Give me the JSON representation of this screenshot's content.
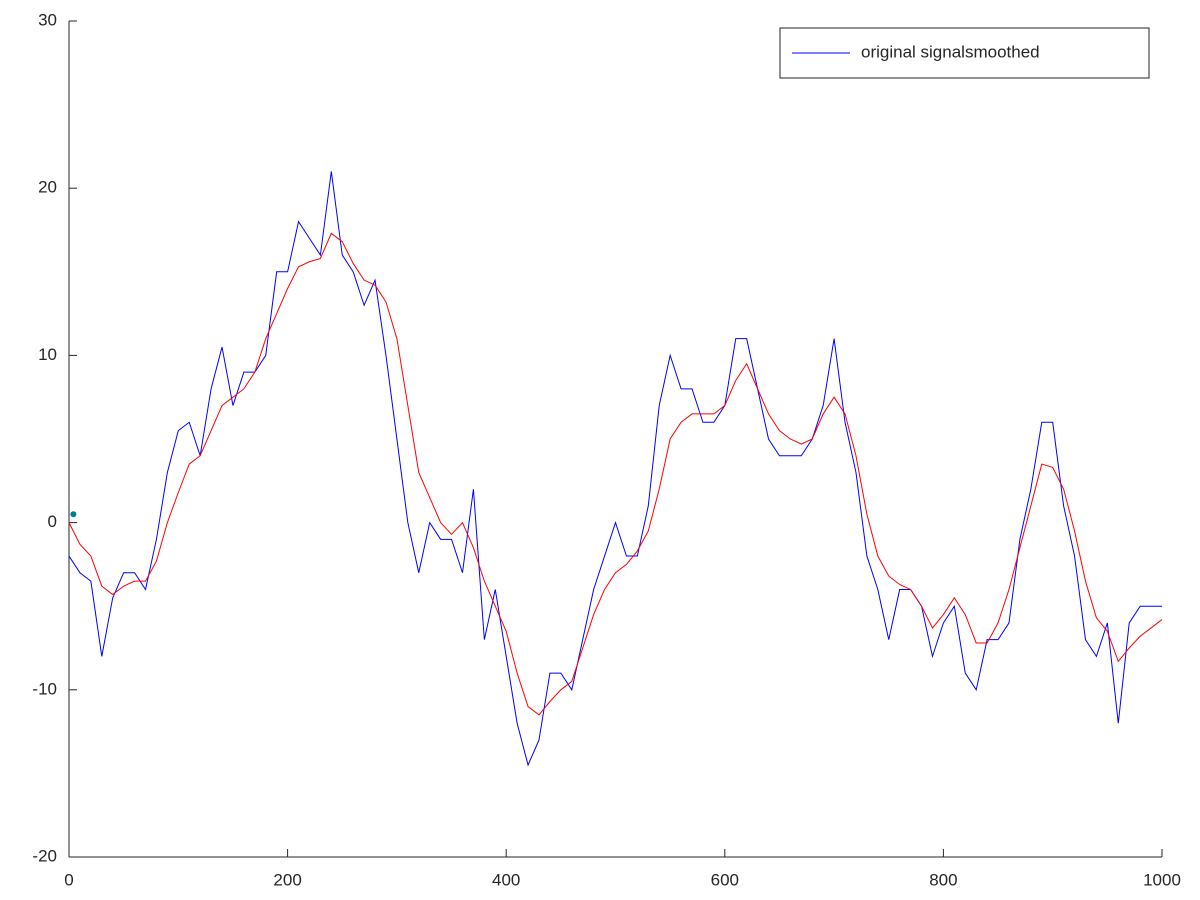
{
  "chart_data": {
    "type": "line",
    "x": [
      0,
      10,
      20,
      30,
      40,
      50,
      60,
      70,
      80,
      90,
      100,
      110,
      120,
      130,
      140,
      150,
      160,
      170,
      180,
      190,
      200,
      210,
      220,
      230,
      240,
      250,
      260,
      270,
      280,
      290,
      300,
      310,
      320,
      330,
      340,
      350,
      360,
      370,
      380,
      390,
      400,
      410,
      420,
      430,
      440,
      450,
      460,
      470,
      480,
      490,
      500,
      510,
      520,
      530,
      540,
      550,
      560,
      570,
      580,
      590,
      600,
      610,
      620,
      630,
      640,
      650,
      660,
      670,
      680,
      690,
      700,
      710,
      720,
      730,
      740,
      750,
      760,
      770,
      780,
      790,
      800,
      810,
      820,
      830,
      840,
      850,
      860,
      870,
      880,
      890,
      900,
      910,
      920,
      930,
      940,
      950,
      960,
      970,
      980,
      990,
      1000
    ],
    "series": [
      {
        "name": "original signalsmoothed",
        "color": "#0000ff",
        "values": [
          -2,
          -3,
          -3.5,
          -8,
          -4.5,
          -3,
          -3,
          -4,
          -1,
          3,
          5.5,
          6,
          4,
          8,
          10.5,
          7,
          9,
          9,
          10,
          15,
          15,
          18,
          17,
          16,
          21,
          16,
          15,
          13,
          14.5,
          10,
          5,
          0,
          -3,
          0,
          -1,
          -1,
          -3,
          2,
          -7,
          -4,
          -8,
          -12,
          -14.5,
          -13,
          -9,
          -9,
          -10,
          -7,
          -4,
          -2,
          0,
          -2,
          -2,
          1,
          7,
          10,
          8,
          8,
          6,
          6,
          7,
          11,
          11,
          8,
          5,
          4,
          4,
          4,
          5,
          7,
          11,
          6,
          3,
          -2,
          -4,
          -7,
          -4,
          -4,
          -5,
          -8,
          -6,
          -5,
          -9,
          -10,
          -7,
          -7,
          -6,
          -1,
          2,
          6,
          6,
          1,
          -2,
          -7,
          -8,
          -6,
          -12,
          -6,
          -5,
          -5,
          -5
        ]
      },
      {
        "color": "#ff0000",
        "values": [
          0,
          -1.3,
          -2,
          -3.8,
          -4.3,
          -3.8,
          -3.5,
          -3.5,
          -2.3,
          0,
          1.8,
          3.5,
          4,
          5.5,
          7,
          7.5,
          8,
          9,
          11,
          12.5,
          14,
          15.3,
          15.6,
          15.8,
          17.3,
          16.8,
          15.5,
          14.5,
          14.2,
          13.2,
          11,
          7,
          3,
          1.5,
          0,
          -0.7,
          0,
          -1.5,
          -3.5,
          -5,
          -6.5,
          -9,
          -11,
          -11.5,
          -10.7,
          -10,
          -9.5,
          -7.5,
          -5.5,
          -4,
          -3,
          -2.5,
          -1.7,
          -0.5,
          2,
          5,
          6,
          6.5,
          6.5,
          6.5,
          7,
          8.5,
          9.5,
          8,
          6.5,
          5.5,
          5,
          4.7,
          5,
          6.5,
          7.5,
          6.5,
          4,
          0.5,
          -2,
          -3.2,
          -3.7,
          -4,
          -5,
          -6.3,
          -5.5,
          -4.5,
          -5.5,
          -7.2,
          -7.2,
          -6,
          -4,
          -1.5,
          1,
          3.5,
          3.3,
          2,
          -0.5,
          -3.5,
          -5.7,
          -6.5,
          -8.3,
          -7.5,
          -6.8,
          -6.3,
          -5.8
        ]
      },
      {
        "color": "#00808f",
        "marker": true,
        "x": [
          4
        ],
        "values": [
          0.5
        ]
      }
    ],
    "xlim": [
      0,
      1000
    ],
    "xticks": [
      0,
      200,
      400,
      600,
      800,
      1000
    ],
    "ylim": [
      -20,
      30
    ],
    "yticks": [
      -20,
      -10,
      0,
      10,
      20,
      30
    ],
    "grid": false,
    "legend": "top-right"
  }
}
